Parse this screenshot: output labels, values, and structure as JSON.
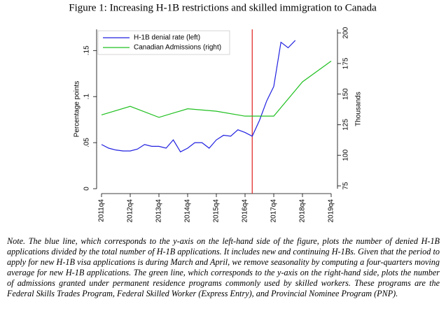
{
  "chart_data": {
    "type": "line",
    "title": "Figure 1: Increasing H-1B restrictions and skilled immigration to Canada",
    "ylabel": "Percentage points",
    "y2label": "Thousands",
    "xlim": [
      207,
      239
    ],
    "xticks": [
      {
        "value": 207,
        "label": "2011q4"
      },
      {
        "value": 211,
        "label": "2012q4"
      },
      {
        "value": 215,
        "label": "2013q4"
      },
      {
        "value": 219,
        "label": "2014q4"
      },
      {
        "value": 223,
        "label": "2015q4"
      },
      {
        "value": 227,
        "label": "2016q4"
      },
      {
        "value": 231,
        "label": "2017q4"
      },
      {
        "value": 235,
        "label": "2018q4"
      },
      {
        "value": 239,
        "label": "2019q4"
      }
    ],
    "ylim": [
      0,
      0.173
    ],
    "yticks": [
      0,
      {
        "value": 0.05,
        "label": ".05"
      },
      {
        "value": 0.1,
        "label": ".1"
      },
      {
        "value": 0.15,
        "label": ".15"
      }
    ],
    "y2lim": [
      72.7,
      202.9
    ],
    "y2ticks": [
      75,
      100,
      125,
      150,
      175,
      200
    ],
    "vline": {
      "x": 228,
      "color": "#e02020"
    },
    "legend": "top-left",
    "series": [
      {
        "name": "H-1B denial rate (left)",
        "color": "#2020e0",
        "x": [
          207,
          208,
          209,
          210,
          211,
          212,
          213,
          214,
          215,
          216,
          217,
          218,
          219,
          220,
          221,
          222,
          223,
          224,
          225,
          226,
          227,
          228,
          229,
          230,
          231,
          232,
          233,
          234
        ],
        "values": [
          0.048,
          0.044,
          0.042,
          0.041,
          0.041,
          0.043,
          0.048,
          0.046,
          0.046,
          0.044,
          0.053,
          0.04,
          0.044,
          0.05,
          0.05,
          0.044,
          0.053,
          0.058,
          0.057,
          0.064,
          0.061,
          0.057,
          0.074,
          0.095,
          0.111,
          0.159,
          0.153,
          0.161
        ]
      },
      {
        "name": "Canadian Admissions (right)",
        "color": "#20c020",
        "axis": "y2",
        "x": [
          207,
          211,
          215,
          219,
          223,
          227,
          231,
          235,
          239
        ],
        "values": [
          133,
          140,
          131,
          138,
          136,
          132,
          132,
          160,
          177
        ]
      }
    ],
    "note": "Note. The blue line, which corresponds to the y-axis on the left-hand side of the figure, plots the number of denied H-1B applications divided by the total number of H-1B applications. It includes new and continuing H-1Bs. Given that the period to apply for new H-1B visa applications is during March and April, we remove seasonality by computing a four-quarters moving average for new H-1B applications. The green line, which corresponds to the y-axis on the right-hand side, plots the number of admissions granted under permanent residence programs commonly used by skilled workers. These programs are the Federal Skills Trades Program, Federal Skilled Worker (Express Entry), and Provincial Nominee Program (PNP)."
  }
}
